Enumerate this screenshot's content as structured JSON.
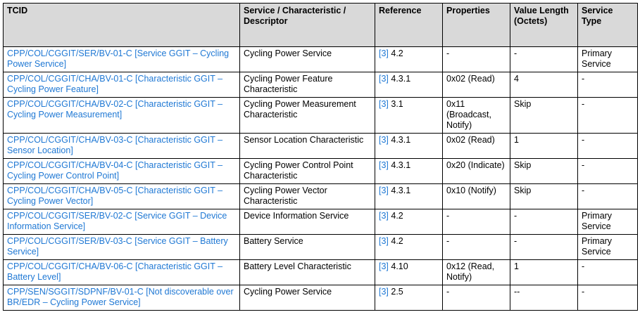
{
  "table": {
    "headers": [
      "TCID",
      "Service / Characteristic / Descriptor",
      "Reference",
      "Properties",
      "Value Length (Octets)",
      "Service Type"
    ],
    "rows": [
      {
        "tcid": "CPP/COL/CGGIT/SER/BV-01-C [Service GGIT – Cycling Power Service]",
        "service": "Cycling Power Service",
        "ref_num": "[3]",
        "ref_sec": " 4.2",
        "properties": "-",
        "length": "-",
        "type": "Primary Service"
      },
      {
        "tcid": "CPP/COL/CGGIT/CHA/BV-01-C [Characteristic GGIT – Cycling Power Feature]",
        "service": "Cycling Power Feature Characteristic",
        "ref_num": "[3]",
        "ref_sec": " 4.3.1",
        "properties": "0x02 (Read)",
        "length": "4",
        "type": "-"
      },
      {
        "tcid": "CPP/COL/CGGIT/CHA/BV-02-C [Characteristic GGIT – Cycling Power Measurement]",
        "service": "Cycling Power Measurement Characteristic",
        "ref_num": "[3]",
        "ref_sec": " 3.1",
        "properties": "0x11 (Broadcast, Notify)",
        "length": "Skip",
        "type": "-"
      },
      {
        "tcid": "CPP/COL/CGGIT/CHA/BV-03-C [Characteristic GGIT – Sensor Location]",
        "service": "Sensor Location Characteristic",
        "ref_num": "[3]",
        "ref_sec": " 4.3.1",
        "properties": "0x02 (Read)",
        "length": "1",
        "type": "-"
      },
      {
        "tcid": "CPP/COL/CGGIT/CHA/BV-04-C [Characteristic GGIT – Cycling Power Control Point]",
        "service": "Cycling Power Control Point Characteristic",
        "ref_num": "[3]",
        "ref_sec": " 4.3.1",
        "properties": "0x20 (Indicate)",
        "length": "Skip",
        "type": "-"
      },
      {
        "tcid": "CPP/COL/CGGIT/CHA/BV-05-C [Characteristic GGIT – Cycling Power Vector]",
        "service": "Cycling Power Vector Characteristic",
        "ref_num": "[3]",
        "ref_sec": " 4.3.1",
        "properties": "0x10 (Notify)",
        "length": "Skip",
        "type": "-"
      },
      {
        "tcid": "CPP/COL/CGGIT/SER/BV-02-C [Service GGIT – Device Information Service]",
        "service": "Device Information Service",
        "ref_num": "[3]",
        "ref_sec": " 4.2",
        "properties": "-",
        "length": "-",
        "type": "Primary Service"
      },
      {
        "tcid": "CPP/COL/CGGIT/SER/BV-03-C [Service GGIT – Battery Service]",
        "service": "Battery Service",
        "ref_num": "[3]",
        "ref_sec": " 4.2",
        "properties": "-",
        "length": "-",
        "type": "Primary Service"
      },
      {
        "tcid": "CPP/COL/CGGIT/CHA/BV-06-C [Characteristic GGIT – Battery Level]",
        "service": "Battery Level Characteristic",
        "ref_num": "[3]",
        "ref_sec": " 4.10",
        "properties": "0x12 (Read, Notify)",
        "length": "1",
        "type": "-"
      },
      {
        "tcid": "CPP/SEN/SGGIT/SDPNF/BV-01-C [Not discoverable over BR/EDR – Cycling Power Service]",
        "service": "Cycling Power Service",
        "ref_num": "[3]",
        "ref_sec": " 2.5",
        "properties": "-",
        "length": "--",
        "type": "-"
      }
    ]
  }
}
